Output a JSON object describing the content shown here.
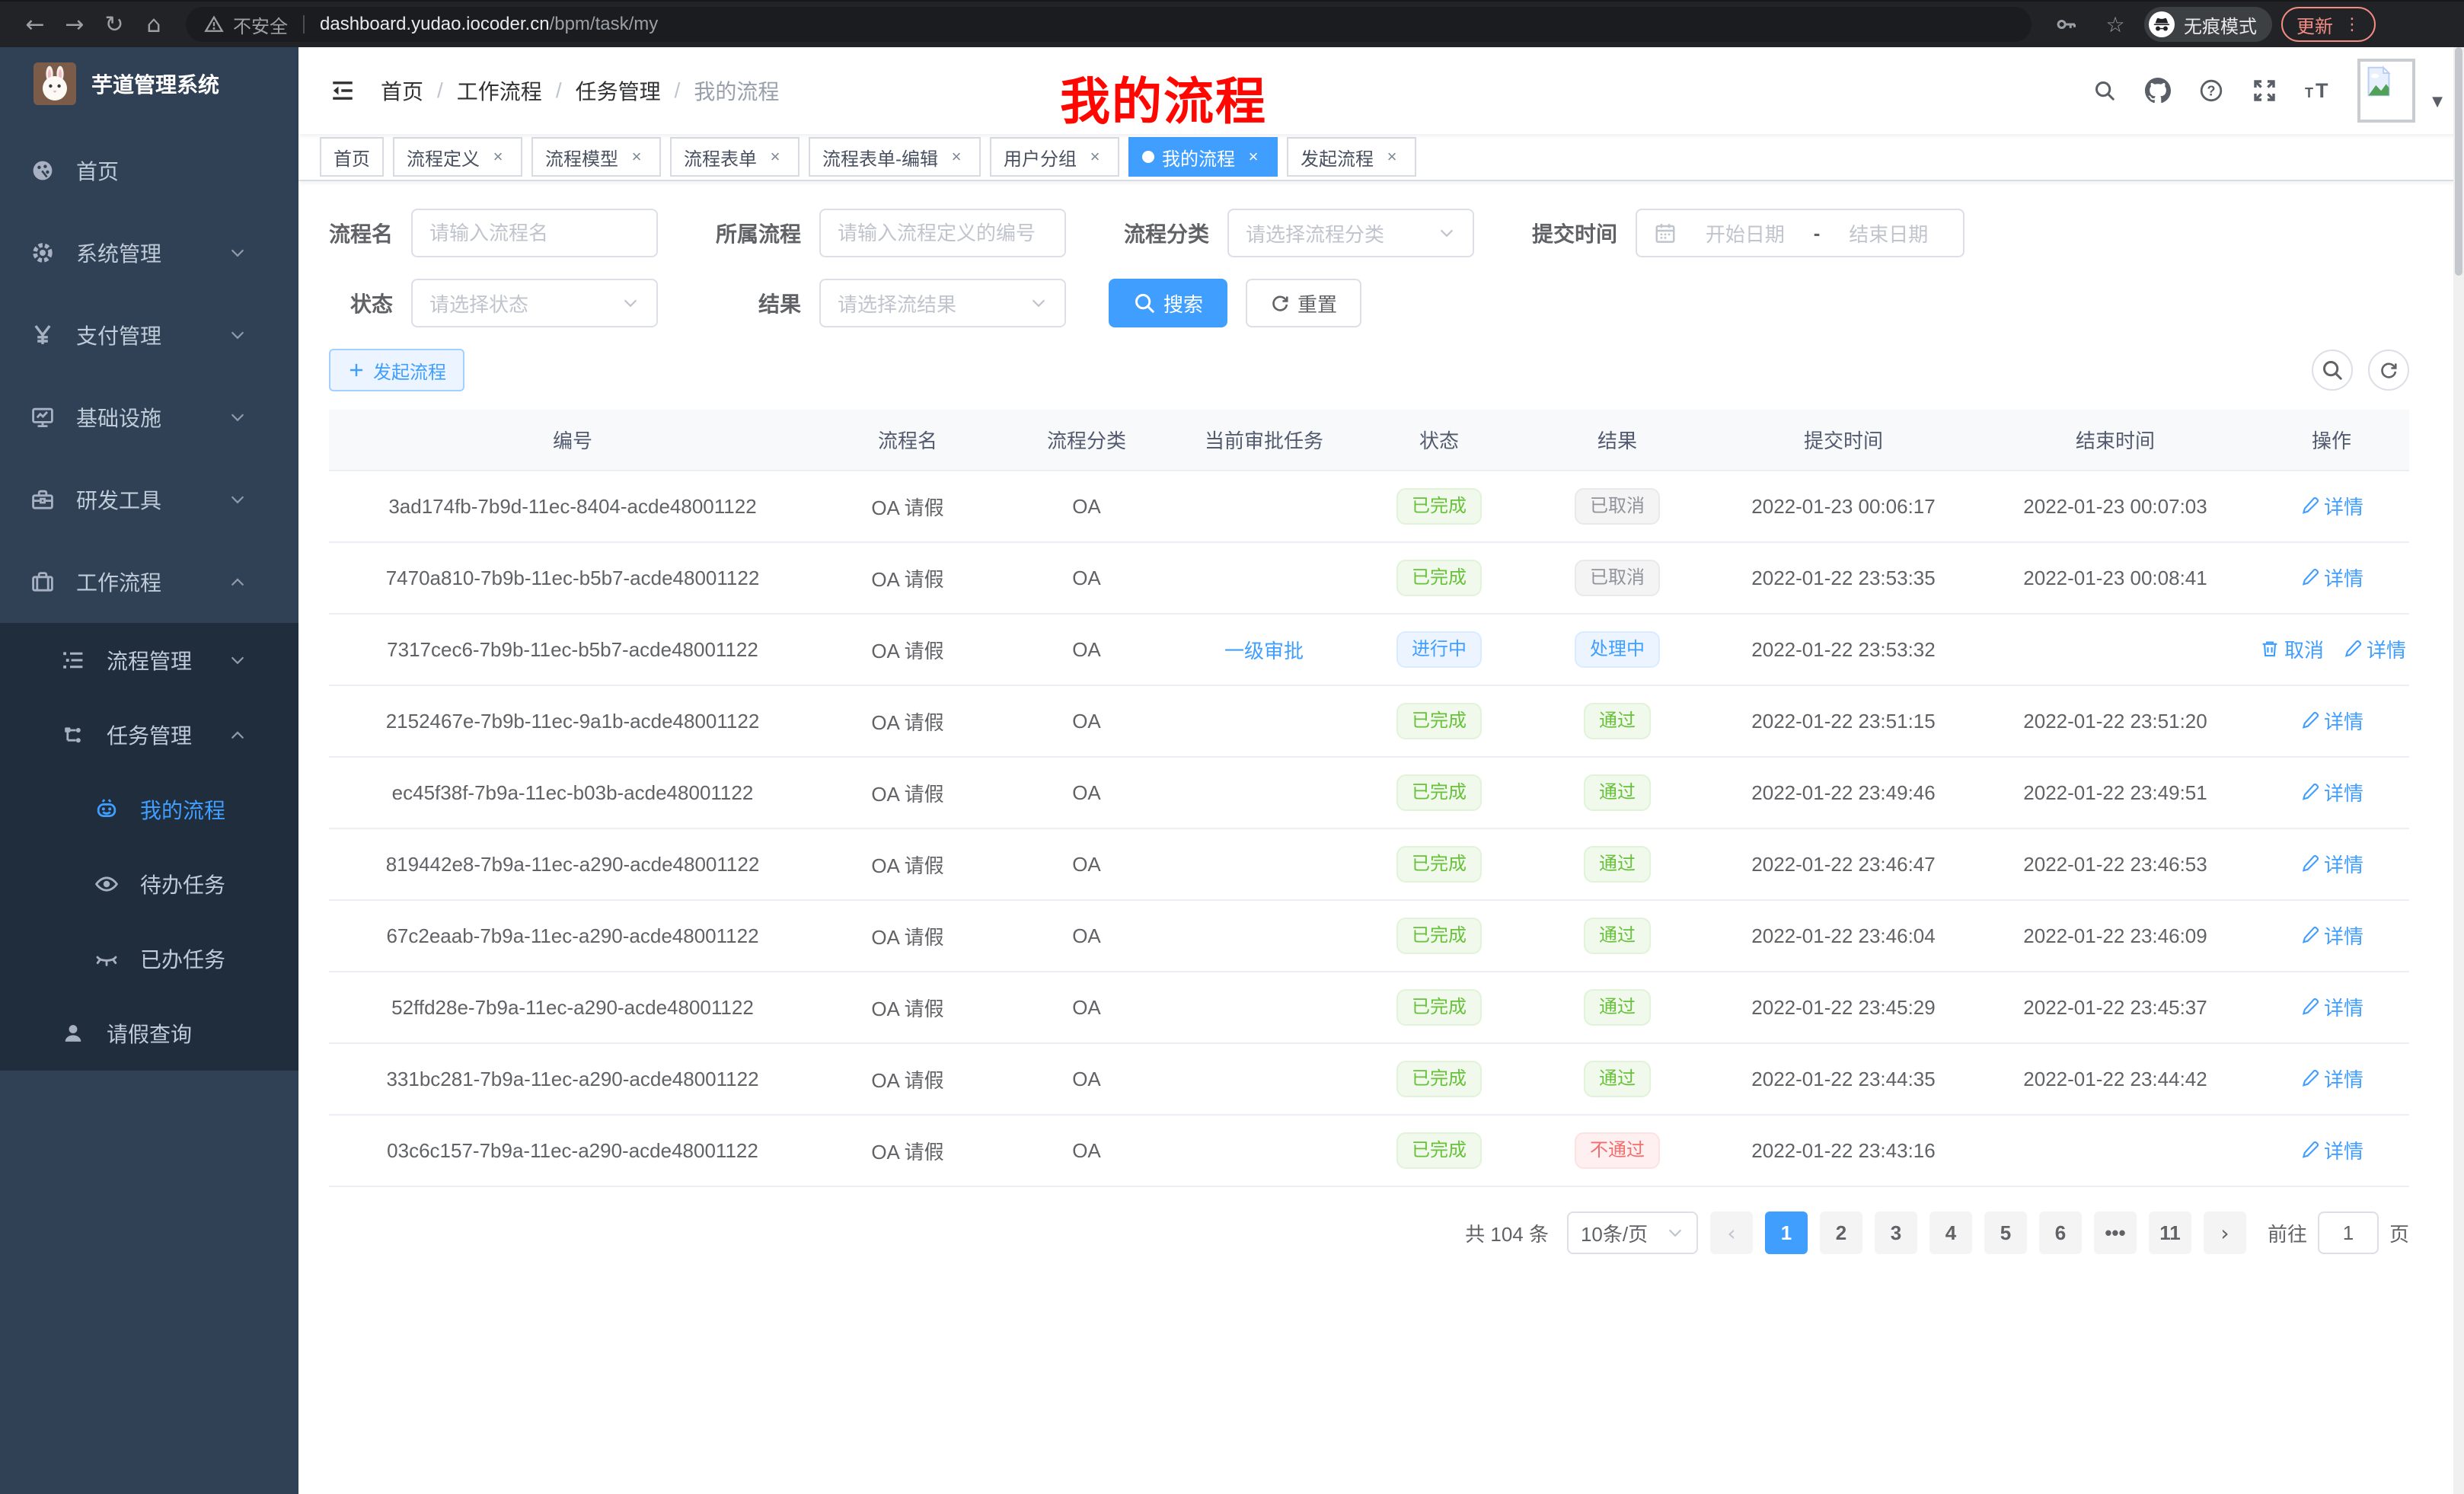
{
  "browser": {
    "security_label": "不安全",
    "url_domain": "dashboard.yudao.iocoder.cn",
    "url_path": "/bpm/task/my",
    "incognito_label": "无痕模式",
    "update_label": "更新"
  },
  "sidebar": {
    "title": "芋道管理系统",
    "items": [
      {
        "key": "home",
        "label": "首页",
        "icon": "dashboard-icon",
        "level": 1,
        "sub": false,
        "active": false,
        "chevron": ""
      },
      {
        "key": "system",
        "label": "系统管理",
        "icon": "gear-icon",
        "level": 1,
        "sub": false,
        "active": false,
        "chevron": "down"
      },
      {
        "key": "payment",
        "label": "支付管理",
        "icon": "yen-icon",
        "level": 1,
        "sub": false,
        "active": false,
        "chevron": "down"
      },
      {
        "key": "infrastructure",
        "label": "基础设施",
        "icon": "monitor-icon",
        "level": 1,
        "sub": false,
        "active": false,
        "chevron": "down"
      },
      {
        "key": "dev-tools",
        "label": "研发工具",
        "icon": "toolbox-icon",
        "level": 1,
        "sub": false,
        "active": false,
        "chevron": "down"
      },
      {
        "key": "workflow",
        "label": "工作流程",
        "icon": "briefcase-icon",
        "level": 1,
        "sub": false,
        "active": false,
        "chevron": "up"
      },
      {
        "key": "process-mgmt",
        "label": "流程管理",
        "icon": "list-icon",
        "level": 2,
        "sub": true,
        "active": false,
        "chevron": "down"
      },
      {
        "key": "task-mgmt",
        "label": "任务管理",
        "icon": "flow-icon",
        "level": 2,
        "sub": true,
        "active": false,
        "chevron": "up"
      },
      {
        "key": "my-process",
        "label": "我的流程",
        "icon": "robot-icon",
        "level": 3,
        "sub": true,
        "active": true,
        "chevron": ""
      },
      {
        "key": "todo-tasks",
        "label": "待办任务",
        "icon": "eye-open-icon",
        "level": 3,
        "sub": true,
        "active": false,
        "chevron": ""
      },
      {
        "key": "done-tasks",
        "label": "已办任务",
        "icon": "eye-closed-icon",
        "level": 3,
        "sub": true,
        "active": false,
        "chevron": ""
      },
      {
        "key": "leave-query",
        "label": "请假查询",
        "icon": "user-icon",
        "level": 2,
        "sub": true,
        "active": false,
        "chevron": ""
      }
    ]
  },
  "header": {
    "breadcrumb": [
      "首页",
      "工作流程",
      "任务管理",
      "我的流程"
    ],
    "annotation": "我的流程"
  },
  "tabs": {
    "items": [
      {
        "key": "home",
        "label": "首页",
        "closable": false,
        "active": false
      },
      {
        "key": "process-definition",
        "label": "流程定义",
        "closable": true,
        "active": false
      },
      {
        "key": "process-model",
        "label": "流程模型",
        "closable": true,
        "active": false
      },
      {
        "key": "process-form",
        "label": "流程表单",
        "closable": true,
        "active": false
      },
      {
        "key": "process-form-edit",
        "label": "流程表单-编辑",
        "closable": true,
        "active": false
      },
      {
        "key": "user-group",
        "label": "用户分组",
        "closable": true,
        "active": false
      },
      {
        "key": "my-process",
        "label": "我的流程",
        "closable": true,
        "active": true
      },
      {
        "key": "start-process",
        "label": "发起流程",
        "closable": true,
        "active": false
      }
    ]
  },
  "filters": {
    "process_name": {
      "label": "流程名",
      "placeholder": "请输入流程名"
    },
    "process_def": {
      "label": "所属流程",
      "placeholder": "请输入流程定义的编号"
    },
    "category": {
      "label": "流程分类",
      "placeholder": "请选择流程分类"
    },
    "submit_time": {
      "label": "提交时间",
      "start_placeholder": "开始日期",
      "separator": "-",
      "end_placeholder": "结束日期"
    },
    "status": {
      "label": "状态",
      "placeholder": "请选择状态"
    },
    "result": {
      "label": "结果",
      "placeholder": "请选择流结果"
    },
    "search_label": "搜索",
    "reset_label": "重置"
  },
  "toolbar": {
    "create_label": "发起流程"
  },
  "table": {
    "columns": [
      "编号",
      "流程名",
      "流程分类",
      "当前审批任务",
      "状态",
      "结果",
      "提交时间",
      "结束时间",
      "操作"
    ],
    "rows": [
      {
        "id": "3ad174fb-7b9d-11ec-8404-acde48001122",
        "name": "OA 请假",
        "category": "OA",
        "task": "",
        "status": {
          "text": "已完成",
          "type": "success"
        },
        "result": {
          "text": "已取消",
          "type": "info"
        },
        "submit_time": "2022-01-23 00:06:17",
        "end_time": "2022-01-23 00:07:03",
        "actions": [
          {
            "label": "详情",
            "icon": "edit-icon"
          }
        ]
      },
      {
        "id": "7470a810-7b9b-11ec-b5b7-acde48001122",
        "name": "OA 请假",
        "category": "OA",
        "task": "",
        "status": {
          "text": "已完成",
          "type": "success"
        },
        "result": {
          "text": "已取消",
          "type": "info"
        },
        "submit_time": "2022-01-22 23:53:35",
        "end_time": "2022-01-23 00:08:41",
        "actions": [
          {
            "label": "详情",
            "icon": "edit-icon"
          }
        ]
      },
      {
        "id": "7317cec6-7b9b-11ec-b5b7-acde48001122",
        "name": "OA 请假",
        "category": "OA",
        "task": "一级审批",
        "status": {
          "text": "进行中",
          "type": "primary"
        },
        "result": {
          "text": "处理中",
          "type": "primary"
        },
        "submit_time": "2022-01-22 23:53:32",
        "end_time": "",
        "actions": [
          {
            "label": "取消",
            "icon": "trash-icon"
          },
          {
            "label": "详情",
            "icon": "edit-icon"
          }
        ]
      },
      {
        "id": "2152467e-7b9b-11ec-9a1b-acde48001122",
        "name": "OA 请假",
        "category": "OA",
        "task": "",
        "status": {
          "text": "已完成",
          "type": "success"
        },
        "result": {
          "text": "通过",
          "type": "success"
        },
        "submit_time": "2022-01-22 23:51:15",
        "end_time": "2022-01-22 23:51:20",
        "actions": [
          {
            "label": "详情",
            "icon": "edit-icon"
          }
        ]
      },
      {
        "id": "ec45f38f-7b9a-11ec-b03b-acde48001122",
        "name": "OA 请假",
        "category": "OA",
        "task": "",
        "status": {
          "text": "已完成",
          "type": "success"
        },
        "result": {
          "text": "通过",
          "type": "success"
        },
        "submit_time": "2022-01-22 23:49:46",
        "end_time": "2022-01-22 23:49:51",
        "actions": [
          {
            "label": "详情",
            "icon": "edit-icon"
          }
        ]
      },
      {
        "id": "819442e8-7b9a-11ec-a290-acde48001122",
        "name": "OA 请假",
        "category": "OA",
        "task": "",
        "status": {
          "text": "已完成",
          "type": "success"
        },
        "result": {
          "text": "通过",
          "type": "success"
        },
        "submit_time": "2022-01-22 23:46:47",
        "end_time": "2022-01-22 23:46:53",
        "actions": [
          {
            "label": "详情",
            "icon": "edit-icon"
          }
        ]
      },
      {
        "id": "67c2eaab-7b9a-11ec-a290-acde48001122",
        "name": "OA 请假",
        "category": "OA",
        "task": "",
        "status": {
          "text": "已完成",
          "type": "success"
        },
        "result": {
          "text": "通过",
          "type": "success"
        },
        "submit_time": "2022-01-22 23:46:04",
        "end_time": "2022-01-22 23:46:09",
        "actions": [
          {
            "label": "详情",
            "icon": "edit-icon"
          }
        ]
      },
      {
        "id": "52ffd28e-7b9a-11ec-a290-acde48001122",
        "name": "OA 请假",
        "category": "OA",
        "task": "",
        "status": {
          "text": "已完成",
          "type": "success"
        },
        "result": {
          "text": "通过",
          "type": "success"
        },
        "submit_time": "2022-01-22 23:45:29",
        "end_time": "2022-01-22 23:45:37",
        "actions": [
          {
            "label": "详情",
            "icon": "edit-icon"
          }
        ]
      },
      {
        "id": "331bc281-7b9a-11ec-a290-acde48001122",
        "name": "OA 请假",
        "category": "OA",
        "task": "",
        "status": {
          "text": "已完成",
          "type": "success"
        },
        "result": {
          "text": "通过",
          "type": "success"
        },
        "submit_time": "2022-01-22 23:44:35",
        "end_time": "2022-01-22 23:44:42",
        "actions": [
          {
            "label": "详情",
            "icon": "edit-icon"
          }
        ]
      },
      {
        "id": "03c6c157-7b9a-11ec-a290-acde48001122",
        "name": "OA 请假",
        "category": "OA",
        "task": "",
        "status": {
          "text": "已完成",
          "type": "success"
        },
        "result": {
          "text": "不通过",
          "type": "danger"
        },
        "submit_time": "2022-01-22 23:43:16",
        "end_time": "",
        "actions": [
          {
            "label": "详情",
            "icon": "edit-icon"
          }
        ]
      }
    ]
  },
  "pagination": {
    "total_label": "共 104 条",
    "page_size_label": "10条/页",
    "prev_symbol": "‹",
    "next_symbol": "›",
    "pages": [
      "1",
      "2",
      "3",
      "4",
      "5",
      "6",
      "•••",
      "11"
    ],
    "active_page": "1",
    "goto_label": "前往",
    "goto_value": "1",
    "page_unit": "页"
  },
  "colors": {
    "accent": "#409eff",
    "success": "#67c23a",
    "info": "#909399",
    "danger": "#f56c6c",
    "annotation": "#ff0600"
  }
}
